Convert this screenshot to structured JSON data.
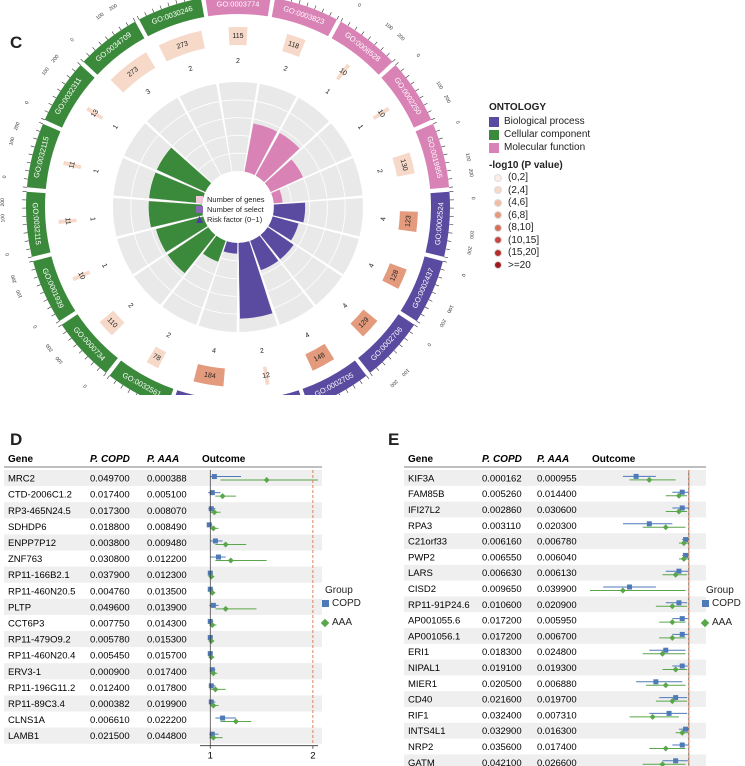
{
  "panels": {
    "c": "C",
    "d": "D",
    "e": "E"
  },
  "colors": {
    "bp": "#5a4aa0",
    "cc": "#3b8a3b",
    "mf": "#d982b5",
    "ring_bg": "#e9e9e9",
    "forest_copd": "#4f7ab8",
    "forest_aaa": "#5aa64a",
    "ref_line": "#d9774a"
  },
  "circos": {
    "legend_center": [
      "Number of genes",
      "Number of select",
      "Risk factor (0~1)"
    ],
    "ontology_title": "ONTOLOGY",
    "ontology_items": [
      {
        "label": "Biological process",
        "color": "#5a4aa0"
      },
      {
        "label": "Cellular component",
        "color": "#3b8a3b"
      },
      {
        "label": "Molecular function",
        "color": "#d982b5"
      }
    ],
    "pvalue_title": "-log10 (P value)",
    "pvalue_bins": [
      {
        "label": "(0,2]",
        "color": "#fbeee6"
      },
      {
        "label": "(2,4]",
        "color": "#f6d9c8"
      },
      {
        "label": "(4,6]",
        "color": "#efbea3"
      },
      {
        "label": "(6,8]",
        "color": "#e49a7c"
      },
      {
        "label": "(8,10]",
        "color": "#d6705a"
      },
      {
        "label": "(10,15]",
        "color": "#c7473f"
      },
      {
        "label": "(15,20]",
        "color": "#b52e2e"
      },
      {
        "label": ">=20",
        "color": "#9e1a1f"
      }
    ],
    "terms": [
      {
        "id": "GO:0003774",
        "ontology": "mf",
        "genes": 115,
        "select": 2,
        "frac": 0.0,
        "pbin": 1
      },
      {
        "id": "GO:0003823",
        "ontology": "mf",
        "genes": 118,
        "select": 2,
        "frac": 0.55,
        "pbin": 1
      },
      {
        "id": "GO:0008528",
        "ontology": "mf",
        "genes": 10,
        "select": 1,
        "frac": 0.55,
        "pbin": 1
      },
      {
        "id": "GO:0002250",
        "ontology": "mf",
        "genes": 10,
        "select": 1,
        "frac": 0.4,
        "pbin": 1
      },
      {
        "id": "GO:0019955",
        "ontology": "mf",
        "genes": 130,
        "select": 2,
        "frac": 0.1,
        "pbin": 1
      },
      {
        "id": "GO:0002524",
        "ontology": "bp",
        "genes": 123,
        "select": 4,
        "frac": 0.35,
        "pbin": 3
      },
      {
        "id": "GO:0002437",
        "ontology": "bp",
        "genes": 128,
        "select": 4,
        "frac": 0.3,
        "pbin": 3
      },
      {
        "id": "GO:0002706",
        "ontology": "bp",
        "genes": 129,
        "select": 4,
        "frac": 0.35,
        "pbin": 3
      },
      {
        "id": "GO:0002705",
        "ontology": "bp",
        "genes": 148,
        "select": 4,
        "frac": 0.35,
        "pbin": 3
      },
      {
        "id": "GO:0043380",
        "ontology": "bp",
        "genes": 12,
        "select": 2,
        "frac": 0.6,
        "pbin": 1
      },
      {
        "id": "GO:0002708",
        "ontology": "bp",
        "genes": 184,
        "select": 4,
        "frac": 0.0,
        "pbin": 3
      },
      {
        "id": "GO:0032561",
        "ontology": "cc",
        "genes": 78,
        "select": 2,
        "frac": 0.0,
        "pbin": 1
      },
      {
        "id": "GO:0000734",
        "ontology": "cc",
        "genes": 110,
        "select": 2,
        "frac": 0.0,
        "pbin": 1
      },
      {
        "id": "GO:0001939",
        "ontology": "cc",
        "genes": 10,
        "select": 1,
        "frac": 0.0,
        "pbin": 1
      },
      {
        "id": "GO:0032115",
        "ontology": "cc",
        "genes": 11,
        "select": 1,
        "frac": 0.0,
        "pbin": 1
      },
      {
        "id": "GO:0032115",
        "ontology": "cc",
        "genes": 11,
        "select": 1,
        "frac": 0.0,
        "pbin": 1
      },
      {
        "id": "GO:0032311",
        "ontology": "cc",
        "genes": 13,
        "select": 1,
        "frac": 0.0,
        "pbin": 1
      },
      {
        "id": "GO:0034709",
        "ontology": "cc",
        "genes": 273,
        "select": 3,
        "frac": 0.0,
        "pbin": 1
      },
      {
        "id": "GO:0030246",
        "ontology": "cc",
        "genes": 273,
        "select": 2,
        "frac": 0.0,
        "pbin": 1
      }
    ]
  },
  "chart_data": [
    {
      "type": "forest",
      "panel": "D",
      "headers": [
        "Gene",
        "P. COPD",
        "P. AAA",
        "Outcome"
      ],
      "ticks": [
        "1",
        "2"
      ],
      "xlim": [
        0.9,
        2.05
      ],
      "reference_line": 2,
      "legend_title": "Group",
      "legend": [
        "COPD",
        "AAA"
      ],
      "rows": [
        {
          "gene": "MRC2",
          "p_copd": "0.049700",
          "p_aaa": "0.000388",
          "copd": [
            1.0,
            1.04,
            1.3
          ],
          "aaa": [
            1.1,
            1.55,
            2.05
          ]
        },
        {
          "gene": "CTD-2006C1.2",
          "p_copd": "0.017400",
          "p_aaa": "0.005100",
          "copd": [
            0.98,
            1.02,
            1.1
          ],
          "aaa": [
            1.05,
            1.12,
            1.25
          ]
        },
        {
          "gene": "RP3-465N24.5",
          "p_copd": "0.017300",
          "p_aaa": "0.008070",
          "copd": [
            0.98,
            1.01,
            1.05
          ],
          "aaa": [
            1.0,
            1.04,
            1.1
          ]
        },
        {
          "gene": "SDHDP6",
          "p_copd": "0.018800",
          "p_aaa": "0.008490",
          "copd": [
            0.97,
            0.99,
            1.02
          ],
          "aaa": [
            1.0,
            1.03,
            1.08
          ]
        },
        {
          "gene": "ENPP7P12",
          "p_copd": "0.003800",
          "p_aaa": "0.009480",
          "copd": [
            1.0,
            1.05,
            1.12
          ],
          "aaa": [
            1.05,
            1.15,
            1.35
          ]
        },
        {
          "gene": "ZNF763",
          "p_copd": "0.030800",
          "p_aaa": "0.012200",
          "copd": [
            1.0,
            1.08,
            1.15
          ],
          "aaa": [
            1.05,
            1.2,
            1.55
          ]
        },
        {
          "gene": "RP11-166B2.1",
          "p_copd": "0.037900",
          "p_aaa": "0.012300",
          "copd": [
            0.98,
            1.0,
            1.02
          ],
          "aaa": [
            0.99,
            1.01,
            1.04
          ]
        },
        {
          "gene": "RP11-460N20.5",
          "p_copd": "0.004760",
          "p_aaa": "0.013500",
          "copd": [
            0.98,
            1.0,
            1.03
          ],
          "aaa": [
            1.0,
            1.02,
            1.05
          ]
        },
        {
          "gene": "PLTP",
          "p_copd": "0.049600",
          "p_aaa": "0.013900",
          "copd": [
            0.99,
            1.03,
            1.08
          ],
          "aaa": [
            1.05,
            1.15,
            1.45
          ]
        },
        {
          "gene": "CCT6P3",
          "p_copd": "0.007750",
          "p_aaa": "0.014300",
          "copd": [
            0.98,
            1.0,
            1.03
          ],
          "aaa": [
            0.99,
            1.02,
            1.06
          ]
        },
        {
          "gene": "RP11-479O9.2",
          "p_copd": "0.005780",
          "p_aaa": "0.015300",
          "copd": [
            0.98,
            1.0,
            1.02
          ],
          "aaa": [
            0.99,
            1.01,
            1.04
          ]
        },
        {
          "gene": "RP11-460N20.4",
          "p_copd": "0.005450",
          "p_aaa": "0.015700",
          "copd": [
            0.98,
            1.0,
            1.02
          ],
          "aaa": [
            0.99,
            1.01,
            1.04
          ]
        },
        {
          "gene": "ERV3-1",
          "p_copd": "0.000900",
          "p_aaa": "0.017400",
          "copd": [
            1.0,
            1.02,
            1.05
          ],
          "aaa": [
            1.0,
            1.03,
            1.07
          ]
        },
        {
          "gene": "RP11-196G11.2",
          "p_copd": "0.012400",
          "p_aaa": "0.017800",
          "copd": [
            0.99,
            1.01,
            1.05
          ],
          "aaa": [
            1.0,
            1.05,
            1.15
          ]
        },
        {
          "gene": "RP11-89C3.4",
          "p_copd": "0.000382",
          "p_aaa": "0.019900",
          "copd": [
            0.99,
            1.01,
            1.05
          ],
          "aaa": [
            1.0,
            1.03,
            1.08
          ]
        },
        {
          "gene": "CLNS1A",
          "p_copd": "0.006610",
          "p_aaa": "0.022200",
          "copd": [
            1.05,
            1.12,
            1.25
          ],
          "aaa": [
            1.1,
            1.25,
            1.4
          ]
        },
        {
          "gene": "LAMB1",
          "p_copd": "0.021500",
          "p_aaa": "0.044800",
          "copd": [
            0.99,
            1.02,
            1.08
          ],
          "aaa": [
            0.99,
            1.03,
            1.12
          ]
        }
      ]
    },
    {
      "type": "forest",
      "panel": "E",
      "headers": [
        "Gene",
        "P. COPD",
        "P. AAA",
        "Outcome"
      ],
      "ticks": [
        "1"
      ],
      "xlim": [
        0.7,
        1.04
      ],
      "reference_line": 1,
      "legend_title": "Group",
      "legend": [
        "COPD",
        "AAA"
      ],
      "rows": [
        {
          "gene": "KIF3A",
          "p_copd": "0.000162",
          "p_aaa": "0.000955",
          "copd": [
            0.8,
            0.84,
            0.9
          ],
          "aaa": [
            0.82,
            0.88,
            0.96
          ]
        },
        {
          "gene": "FAM85B",
          "p_copd": "0.005260",
          "p_aaa": "0.014400",
          "copd": [
            0.95,
            0.98,
            1.0
          ],
          "aaa": [
            0.93,
            0.97,
            0.995
          ]
        },
        {
          "gene": "IFI27L2",
          "p_copd": "0.002860",
          "p_aaa": "0.030600",
          "copd": [
            0.95,
            0.98,
            1.0
          ],
          "aaa": [
            0.93,
            0.97,
            0.995
          ]
        },
        {
          "gene": "RPA3",
          "p_copd": "0.003110",
          "p_aaa": "0.020300",
          "copd": [
            0.8,
            0.88,
            0.95
          ],
          "aaa": [
            0.86,
            0.93,
            0.99
          ]
        },
        {
          "gene": "C21orf33",
          "p_copd": "0.006160",
          "p_aaa": "0.006780",
          "copd": [
            0.98,
            0.99,
            1.0
          ],
          "aaa": [
            0.97,
            0.985,
            1.0
          ]
        },
        {
          "gene": "PWP2",
          "p_copd": "0.006550",
          "p_aaa": "0.006040",
          "copd": [
            0.98,
            0.99,
            1.0
          ],
          "aaa": [
            0.97,
            0.985,
            1.0
          ]
        },
        {
          "gene": "LARS",
          "p_copd": "0.006630",
          "p_aaa": "0.006130",
          "copd": [
            0.93,
            0.97,
            1.0
          ],
          "aaa": [
            0.92,
            0.96,
            0.995
          ]
        },
        {
          "gene": "CISD2",
          "p_copd": "0.009650",
          "p_aaa": "0.039900",
          "copd": [
            0.74,
            0.82,
            0.9
          ],
          "aaa": [
            0.7,
            0.8,
            0.99
          ]
        },
        {
          "gene": "RP11-91P24.6",
          "p_copd": "0.010600",
          "p_aaa": "0.020900",
          "copd": [
            0.93,
            0.97,
            0.995
          ],
          "aaa": [
            0.9,
            0.95,
            0.995
          ]
        },
        {
          "gene": "AP001055.6",
          "p_copd": "0.017200",
          "p_aaa": "0.005950",
          "copd": [
            0.95,
            0.98,
            0.997
          ],
          "aaa": [
            0.91,
            0.95,
            0.99
          ]
        },
        {
          "gene": "AP001056.1",
          "p_copd": "0.017200",
          "p_aaa": "0.006700",
          "copd": [
            0.95,
            0.98,
            0.997
          ],
          "aaa": [
            0.91,
            0.95,
            0.99
          ]
        },
        {
          "gene": "ERI1",
          "p_copd": "0.018300",
          "p_aaa": "0.024800",
          "copd": [
            0.88,
            0.93,
            0.99
          ],
          "aaa": [
            0.86,
            0.92,
            0.99
          ]
        },
        {
          "gene": "NIPAL1",
          "p_copd": "0.019100",
          "p_aaa": "0.019300",
          "copd": [
            0.95,
            0.98,
            0.997
          ],
          "aaa": [
            0.92,
            0.96,
            0.995
          ]
        },
        {
          "gene": "MIER1",
          "p_copd": "0.020500",
          "p_aaa": "0.006880",
          "copd": [
            0.84,
            0.9,
            0.98
          ],
          "aaa": [
            0.87,
            0.93,
            0.99
          ]
        },
        {
          "gene": "CD40",
          "p_copd": "0.021600",
          "p_aaa": "0.019700",
          "copd": [
            0.91,
            0.96,
            0.995
          ],
          "aaa": [
            0.9,
            0.95,
            0.995
          ]
        },
        {
          "gene": "RIF1",
          "p_copd": "0.032400",
          "p_aaa": "0.007310",
          "copd": [
            0.88,
            0.94,
            0.995
          ],
          "aaa": [
            0.82,
            0.89,
            0.97
          ]
        },
        {
          "gene": "INTS4L1",
          "p_copd": "0.032900",
          "p_aaa": "0.016300",
          "copd": [
            0.97,
            0.99,
            1.0
          ],
          "aaa": [
            0.96,
            0.98,
            0.998
          ]
        },
        {
          "gene": "NRP2",
          "p_copd": "0.035600",
          "p_aaa": "0.017400",
          "copd": [
            0.95,
            0.98,
            0.998
          ],
          "aaa": [
            0.88,
            0.93,
            0.99
          ]
        },
        {
          "gene": "GATM",
          "p_copd": "0.042100",
          "p_aaa": "0.026600",
          "copd": [
            0.92,
            0.96,
            0.997
          ],
          "aaa": [
            0.86,
            0.92,
            0.99
          ]
        }
      ]
    }
  ]
}
